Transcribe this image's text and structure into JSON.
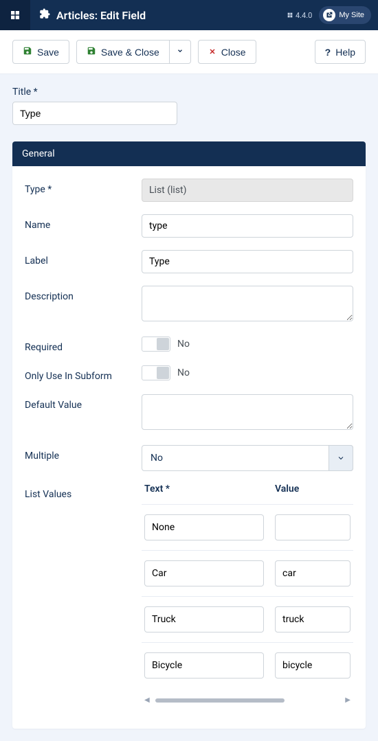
{
  "topbar": {
    "title": "Articles: Edit Field",
    "version_label": "4.4.0",
    "mysite_label": "My Site"
  },
  "toolbar": {
    "save": "Save",
    "save_close": "Save & Close",
    "close": "Close",
    "help": "Help"
  },
  "title_field": {
    "label": "Title *",
    "value": "Type"
  },
  "panel": {
    "header": "General",
    "type": {
      "label": "Type *",
      "value": "List (list)"
    },
    "name": {
      "label": "Name",
      "value": "type"
    },
    "labelField": {
      "label": "Label",
      "value": "Type"
    },
    "description": {
      "label": "Description",
      "value": ""
    },
    "required": {
      "label": "Required",
      "state": "No"
    },
    "only_subform": {
      "label": "Only Use In Subform",
      "state": "No"
    },
    "default_value": {
      "label": "Default Value",
      "value": ""
    },
    "multiple": {
      "label": "Multiple",
      "value": "No"
    },
    "list_values": {
      "label": "List Values",
      "text_header": "Text *",
      "value_header": "Value",
      "rows": [
        {
          "text": "None",
          "value": ""
        },
        {
          "text": "Car",
          "value": "car"
        },
        {
          "text": "Truck",
          "value": "truck"
        },
        {
          "text": "Bicycle",
          "value": "bicycle"
        }
      ]
    }
  }
}
